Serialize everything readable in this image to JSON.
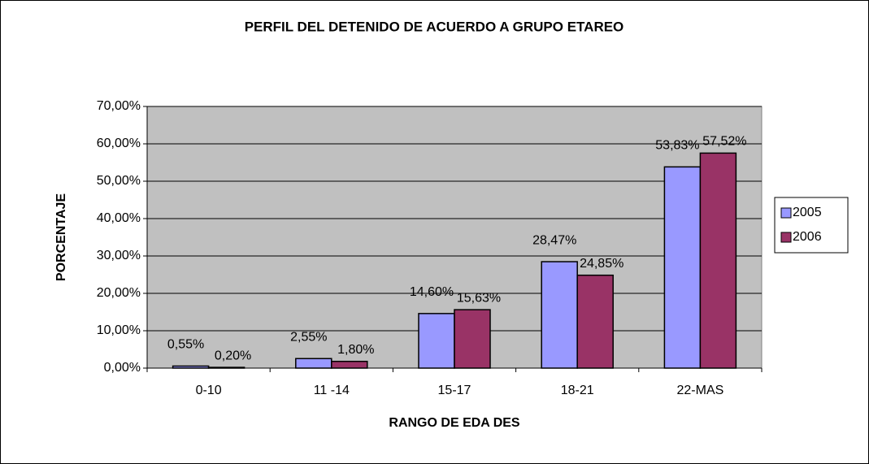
{
  "chart_data": {
    "type": "bar",
    "title": "PERFIL DEL DETENIDO DE ACUERDO A GRUPO ETAREO",
    "x_label": "RANGO DE EDA DES",
    "y_label": "PORCENTAJE",
    "categories": [
      "0-10",
      "11 -14",
      "15-17",
      "18-21",
      "22-MAS"
    ],
    "series": [
      {
        "name": "2005",
        "color": "#9999ff",
        "values": [
          0.55,
          2.55,
          14.6,
          28.47,
          53.83
        ],
        "value_labels": [
          "0,55%",
          "2,55%",
          "14,60%",
          "28,47%",
          "53,83%"
        ]
      },
      {
        "name": "2006",
        "color": "#993366",
        "values": [
          0.2,
          1.8,
          15.63,
          24.85,
          57.52
        ],
        "value_labels": [
          "0,20%",
          "1,80%",
          "15,63%",
          "24,85%",
          "57,52%"
        ]
      }
    ],
    "ylim": [
      0,
      70
    ],
    "yticks": [
      {
        "value": 0,
        "label": "0,00%"
      },
      {
        "value": 10,
        "label": "10,00%"
      },
      {
        "value": 20,
        "label": "20,00%"
      },
      {
        "value": 30,
        "label": "30,00%"
      },
      {
        "value": 40,
        "label": "40,00%"
      },
      {
        "value": 50,
        "label": "50,00%"
      },
      {
        "value": 60,
        "label": "60,00%"
      },
      {
        "value": 70,
        "label": "70,00%"
      }
    ],
    "grid": true,
    "legend": "right"
  }
}
